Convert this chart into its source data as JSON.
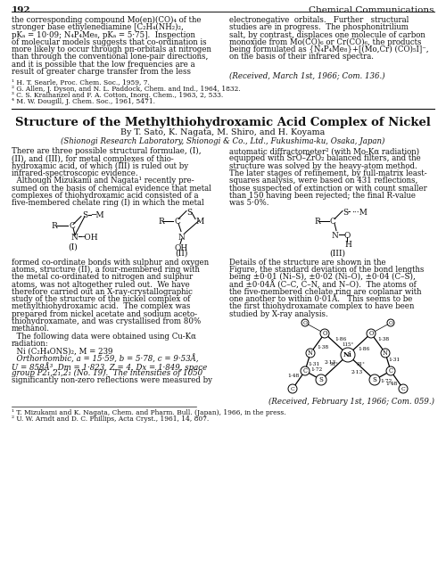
{
  "page_num": "192",
  "journal_name": "Chemical Communications",
  "bg_color": "#f5f5f0",
  "text_color": "#1a1a1a",
  "top_left_col": [
    "the corresponding compound Mo(en)(CO)₄ of the",
    "stronger base ethylenediamine [C₂H₄(NH₂)₂,",
    "pKₐ = 10·09; N₄P₄Me₈, pKₐ = 5·75].  Inspection",
    "of molecular models suggests that co-ordination is",
    "more likely to occur through pπ-orbitals at nitrogen",
    "than through the conventional lone-pair directions,",
    "and it is possible that the low frequencies are a",
    "result of greater charge transfer from the less"
  ],
  "top_right_col": [
    "electronegative  orbitals.   Further   structural",
    "studies are in progress.  The phosphonitrilium",
    "salt, by contrast, displaces one molecule of carbon",
    "monoxide from Mo(CO)₆ or Cr(CO)₆, the products",
    "being formulated as {N₄P₄Me₈}+[(Mo,Cr) (CO)₅I]⁻,",
    "on the basis of their infrared spectra."
  ],
  "received1": "(Received, March 1st, 1966; Com. 136.)",
  "footnotes1": [
    "¹ H. T. Searle, Proc. Chem. Soc., 1959, 7.",
    "² G. Allen, J. Dyson, and N. L. Paddock, Chem. and Ind., 1964, 1832.",
    "³ C. S. Kraihanzel and F. A. Cotton, Inorg. Chem., 1963, 2, 533.",
    "⁴ M. W. Dougill, J. Chem. Soc., 1961, 5471."
  ],
  "article_title": "Structure of the Methylthiohydroxamic Acid Complex of Nickel",
  "article_authors": "By T. Sato, K. Nagata, M. Shiro, and H. Koyama",
  "article_affiliation": "(Shionogi Research Laboratory, Shionogi & Co., Ltd., Fukushima-ku, Osaka, Japan)",
  "body1_left": [
    "There are three possible structural formulae, (I),",
    "(II), and (III), for metal complexes of thio-",
    "hydroxamic acid, of which (III) is ruled out by",
    "infrared-spectroscopic evidence.",
    "  Although Mizukami and Nagata¹ recently pre-",
    "sumed on the basis of chemical evidence that metal",
    "complexes of thiohydroxamic acid consisted of a",
    "five-membered chelate ring (I) in which the metal"
  ],
  "body1_right": [
    "automatic diffractometer² (with Mo-Kα radiation)",
    "equipped with SrO–ZrO₂ balanced filters, and the",
    "structure was solved by the heavy-atom method.",
    "The later stages of refinement, by full-matrix least-",
    "squares analysis, were based on 431 reflections,",
    "those suspected of extinction or with count smaller",
    "than 150 having been rejected; the final R-value",
    "was 5·0%."
  ],
  "body2_left": [
    "formed co-ordinate bonds with sulphur and oxygen",
    "atoms, structure (II), a four-membered ring with",
    "the metal co-ordinated to nitrogen and sulphur",
    "atoms, was not altogether ruled out.  We have",
    "therefore carried out an X-ray-crystallographic",
    "study of the structure of the nickel complex of",
    "methylthiohydroxamic acid.  The complex was",
    "prepared from nickel acetate and sodium aceto-",
    "thiohydroxamate, and was crystallised from 80%",
    "methanol.",
    "  The following data were obtained using Cu-Kα",
    "radiation:",
    "  Ni (C₂H₄ONS)₂, M = 239",
    "  Orthorhombic, a = 15·59, b = 5·78, c = 9·53Å,",
    "U = 858Å³, Dm = 1·823, Z = 4, Dx = 1·849, space",
    "group P2₁,2₁,2₁ (No. 19).  The intensities of 1050",
    "significantly non-zero reflections were measured by"
  ],
  "body2_right": [
    "Details of the structure are shown in the",
    "Figure, the standard deviation of the bond lengths",
    "being ±0·01 (Ni–S), ±0·02 (Ni–O), ±0·04 (C–S),",
    "and ±0·04Å (C–C, C–N, and N–O).  The atoms of",
    "the five-membered chelate ring are coplanar with",
    "one another to within 0·01Å.   This seems to be",
    "the first thiohydroxamate complex to have been",
    "studied by X-ray analysis."
  ],
  "received2": "(Received, February 1st, 1966; Com. 059.)",
  "footnotes2": [
    "¹ T. Mizukami and K. Nagata, Chem. and Pharm. Bull. (Japan), 1966, in the press.",
    "² U. W. Arndt and D. C. Phillips, Acta Cryst., 1961, 14, 807."
  ]
}
